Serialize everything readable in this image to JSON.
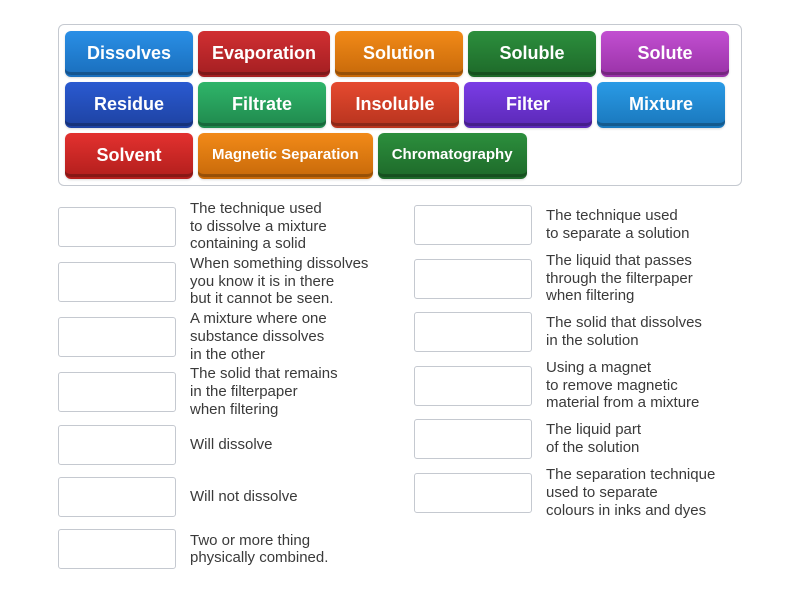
{
  "tiles": [
    {
      "label": "Dissolves",
      "bg": "#2a8fe6",
      "edge": "#1a6fbd",
      "size": ""
    },
    {
      "label": "Evaporation",
      "bg": "#d12f32",
      "edge": "#a51f22",
      "size": ""
    },
    {
      "label": "Solution",
      "bg": "#f28a18",
      "edge": "#c86a0a",
      "size": ""
    },
    {
      "label": "Soluble",
      "bg": "#2c8f3d",
      "edge": "#1e6a2a",
      "size": ""
    },
    {
      "label": "Solute",
      "bg": "#c24fd1",
      "edge": "#9a33a8",
      "size": ""
    },
    {
      "label": "Residue",
      "bg": "#2a5ad1",
      "edge": "#1e43a3",
      "size": ""
    },
    {
      "label": "Filtrate",
      "bg": "#2fb56a",
      "edge": "#208a4e",
      "size": ""
    },
    {
      "label": "Insoluble",
      "bg": "#e64a2f",
      "edge": "#b8341f",
      "size": ""
    },
    {
      "label": "Filter",
      "bg": "#7a3de6",
      "edge": "#5c29b8",
      "size": ""
    },
    {
      "label": "Mixture",
      "bg": "#2a9be6",
      "edge": "#1a78bd",
      "size": ""
    },
    {
      "label": "Solvent",
      "bg": "#e3312f",
      "edge": "#b31f1d",
      "size": ""
    },
    {
      "label": "Magnetic\nSeparation",
      "bg": "#f28a18",
      "edge": "#c86a0a",
      "size": "small"
    },
    {
      "label": "Chromatography",
      "bg": "#2c8f3d",
      "edge": "#1e6a2a",
      "size": "small"
    }
  ],
  "left_defs": [
    "The technique used\nto dissolve a mixture\ncontaining a solid",
    "When something dissolves\nyou know it is in there\nbut it cannot be seen.",
    "A mixture where one\nsubstance dissolves\nin the other",
    "The solid that remains\nin the filterpaper\nwhen filtering",
    "Will dissolve",
    "Will not dissolve",
    "Two or more thing\nphysically combined."
  ],
  "right_defs": [
    "The technique used\nto separate a solution",
    "The liquid that passes\nthrough the filterpaper\nwhen filtering",
    "The solid that dissolves\nin the solution",
    "Using a magnet\nto remove magnetic\nmaterial from a mixture",
    "The liquid part\nof the solution",
    "The separation technique\nused to separate\ncolours in inks and dyes"
  ],
  "def_text_color": "#3a3a3a",
  "slot_border_color": "#c5c9d0",
  "bank_border_color": "#c5c9d0",
  "background_color": "#ffffff"
}
